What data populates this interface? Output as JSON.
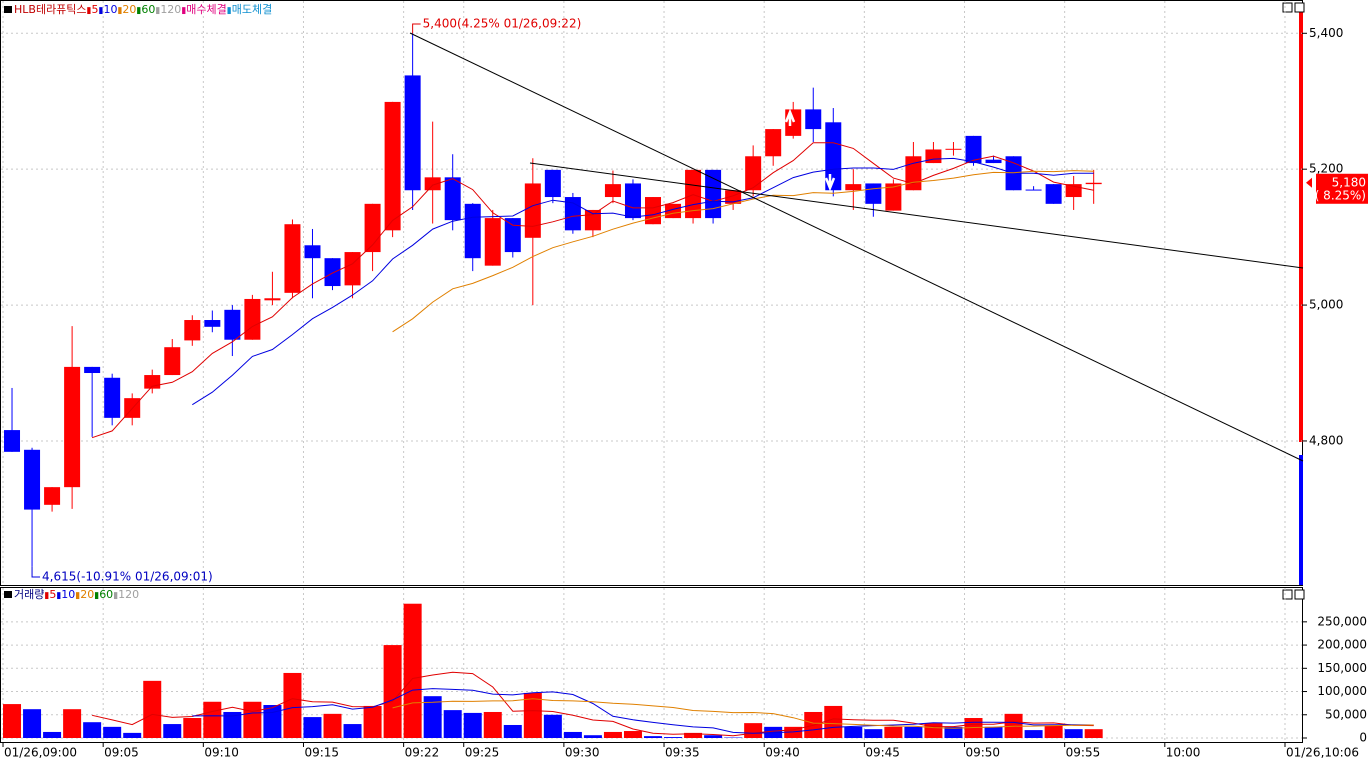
{
  "chart_data": [
    {
      "type": "candlestick",
      "title": "HLB테라퓨틱스",
      "ma_periods": [
        5,
        10,
        20,
        60,
        120
      ],
      "ma_colors": [
        "#e00000",
        "#0000e0",
        "#e08000",
        "#008000",
        "#a0a0a0"
      ],
      "markers": [
        "매수체결",
        "매도체결"
      ],
      "marker_colors": [
        "#e0007f",
        "#1090d0"
      ],
      "up_color": "#ff0000",
      "down_color": "#0000ff",
      "open": [
        4816,
        4787,
        4706,
        4732,
        4909,
        4893,
        4834,
        4877,
        4897,
        4948,
        4978,
        4993,
        4949,
        5007,
        5018,
        5088,
        5069,
        5029,
        5078,
        5110,
        5338,
        5169,
        5188,
        5149,
        5058,
        5128,
        5099,
        5199,
        5159,
        5110,
        5159,
        5179,
        5119,
        5128,
        5128,
        5199,
        5149,
        5169,
        5219,
        5249,
        5288,
        5269,
        5169,
        5179,
        5139,
        5169,
        5209,
        5229,
        5249,
        5214,
        5219,
        5170,
        5178,
        5159,
        5178
      ],
      "high": [
        4878,
        4790,
        4732,
        4969,
        4909,
        4899,
        4870,
        4905,
        4950,
        4985,
        4992,
        5000,
        5015,
        5049,
        5126,
        5112,
        5069,
        5078,
        5149,
        5299,
        5400,
        5270,
        5222,
        5150,
        5140,
        5128,
        5216,
        5199,
        5165,
        5140,
        5198,
        5185,
        5159,
        5149,
        5199,
        5199,
        5169,
        5235,
        5259,
        5299,
        5320,
        5290,
        5200,
        5179,
        5185,
        5240,
        5240,
        5240,
        5249,
        5220,
        5219,
        5175,
        5178,
        5190,
        5199
      ],
      "low": [
        4784,
        4615,
        4696,
        4700,
        4806,
        4823,
        4823,
        4870,
        4897,
        4940,
        4960,
        4925,
        4949,
        5000,
        5010,
        5010,
        5022,
        5010,
        5050,
        5100,
        5140,
        5120,
        5110,
        5050,
        5058,
        5070,
        5000,
        5150,
        5105,
        5100,
        5150,
        5125,
        5119,
        5128,
        5120,
        5120,
        5140,
        5160,
        5205,
        5245,
        5240,
        5160,
        5140,
        5130,
        5139,
        5169,
        5209,
        5220,
        5205,
        5209,
        5169,
        5169,
        5149,
        5140,
        5149
      ],
      "close": [
        4784,
        4699,
        4732,
        4909,
        4900,
        4834,
        4863,
        4897,
        4938,
        4978,
        4968,
        4949,
        5009,
        5010,
        5119,
        5069,
        5028,
        5078,
        5149,
        5299,
        5169,
        5188,
        5125,
        5069,
        5128,
        5078,
        5179,
        5159,
        5110,
        5140,
        5178,
        5128,
        5159,
        5149,
        5199,
        5128,
        5169,
        5219,
        5259,
        5288,
        5259,
        5169,
        5178,
        5149,
        5179,
        5219,
        5229,
        5230,
        5209,
        5209,
        5169,
        5169,
        5149,
        5178,
        5180
      ],
      "ylim": [
        4588,
        5449
      ],
      "yticks": [
        {
          "value": 4800,
          "label": "4,800"
        },
        {
          "value": 5000,
          "label": "5,000"
        },
        {
          "value": 5200,
          "label": "5,200"
        },
        {
          "value": 5400,
          "label": "5,400"
        }
      ],
      "high_note": "5,400(4.25% 01/26,09:22)",
      "low_note": "4,615(-10.91% 01/26,09:01)",
      "last": {
        "value": 5180,
        "label": "5,180"
      },
      "last_change": "( 8.25%)",
      "grid": true
    },
    {
      "type": "bar",
      "title": "거래량",
      "ma_periods": [
        5,
        10,
        20,
        60,
        120
      ],
      "ma_colors": [
        "#e00000",
        "#0000e0",
        "#e08000",
        "#008000",
        "#a0a0a0"
      ],
      "values": [
        73000,
        62000,
        13000,
        62000,
        34000,
        24000,
        11000,
        123000,
        30000,
        43000,
        78000,
        56000,
        78000,
        71000,
        140000,
        45000,
        52000,
        30000,
        69000,
        200000,
        289000,
        90000,
        60000,
        54000,
        56000,
        28000,
        97000,
        50000,
        13000,
        6000,
        13000,
        15000,
        4000,
        2000,
        11000,
        6000,
        1000,
        32000,
        24000,
        24000,
        56000,
        69000,
        24000,
        19000,
        24000,
        24000,
        32000,
        24000,
        43000,
        24000,
        52000,
        17000,
        26000,
        19000,
        19000
      ],
      "colors": [
        "#ff0000",
        "#0000ff",
        "#0000ff",
        "#ff0000",
        "#0000ff",
        "#0000ff",
        "#0000ff",
        "#ff0000",
        "#0000ff",
        "#ff0000",
        "#ff0000",
        "#0000ff",
        "#ff0000",
        "#0000ff",
        "#ff0000",
        "#0000ff",
        "#ff0000",
        "#0000ff",
        "#ff0000",
        "#ff0000",
        "#ff0000",
        "#0000ff",
        "#0000ff",
        "#0000ff",
        "#ff0000",
        "#0000ff",
        "#ff0000",
        "#0000ff",
        "#0000ff",
        "#0000ff",
        "#ff0000",
        "#ff0000",
        "#0000ff",
        "#0000ff",
        "#ff0000",
        "#0000ff",
        "#0000ff",
        "#ff0000",
        "#0000ff",
        "#ff0000",
        "#ff0000",
        "#ff0000",
        "#0000ff",
        "#0000ff",
        "#ff0000",
        "#0000ff",
        "#ff0000",
        "#0000ff",
        "#ff0000",
        "#0000ff",
        "#ff0000",
        "#0000ff",
        "#ff0000",
        "#0000ff",
        "#ff0000"
      ],
      "ylim": [
        0,
        297000
      ],
      "yticks": [
        0,
        {
          "value": 50000,
          "label": "50,000"
        },
        {
          "value": 100000,
          "label": "100,000"
        },
        {
          "value": 150000,
          "label": "150,000"
        },
        {
          "value": 200000,
          "label": "200,000"
        },
        {
          "value": 250000,
          "label": "250,000"
        }
      ],
      "xlim": [
        -0.6,
        64.4
      ],
      "xticks": [
        {
          "value": 0,
          "label": "01/26,09:00"
        },
        {
          "value": 5,
          "label": "09:05"
        },
        {
          "value": 10,
          "label": "09:10"
        },
        {
          "value": 15,
          "label": "09:15"
        },
        {
          "value": 20,
          "label": "09:22"
        },
        {
          "value": 23,
          "label": "09:25"
        },
        {
          "value": 28,
          "label": "09:30"
        },
        {
          "value": 33,
          "label": "09:35"
        },
        {
          "value": 38,
          "label": "09:40"
        },
        {
          "value": 43,
          "label": "09:45"
        },
        {
          "value": 48,
          "label": "09:50"
        },
        {
          "value": 53,
          "label": "09:55"
        },
        {
          "value": 58,
          "label": "10:00"
        },
        {
          "value": 64,
          "label": "01/26,10:06"
        }
      ],
      "grid": true
    }
  ]
}
